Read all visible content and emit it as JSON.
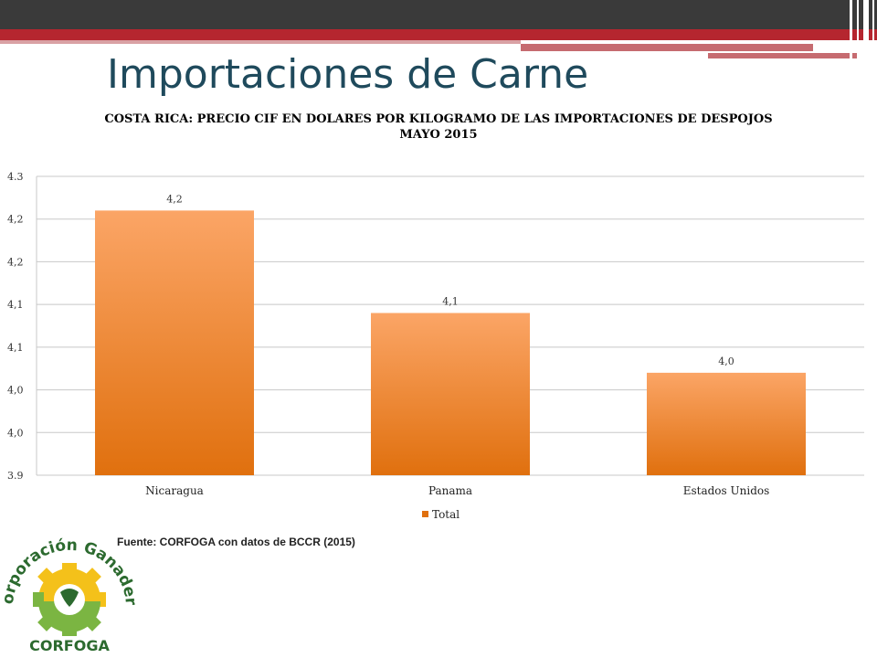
{
  "slide": {
    "title": "Importaciones de Carne",
    "source": "Fuente: CORFOGA con datos de BCCR (2015)"
  },
  "logo": {
    "name": "Corporación Ganadera",
    "short": "CORFOGA"
  },
  "colors": {
    "bar_top": "#fba566",
    "bar_bottom": "#e0700e",
    "title": "#1f4a5c",
    "top_bar": "#3a3a3a",
    "accent": "#b5262f"
  },
  "chart_data": {
    "type": "bar",
    "title": "COSTA RICA: PRECIO CIF EN DOLARES POR KILOGRAMO DE LAS IMPORTACIONES DE DESPOJOS",
    "subtitle": "MAYO 2015",
    "categories": [
      "Nicaragua",
      "Panama",
      "Estados Unidos"
    ],
    "series": [
      {
        "name": "Total",
        "values": [
          4.21,
          4.09,
          4.02
        ],
        "labels": [
          "4,2",
          "4,1",
          "4,0"
        ]
      }
    ],
    "ylim": [
      3.9,
      4.25
    ],
    "yticks": [
      {
        "value": 3.9,
        "label": "3.9"
      },
      {
        "value": 3.95,
        "label": "4,0"
      },
      {
        "value": 4.0,
        "label": "4,0"
      },
      {
        "value": 4.05,
        "label": "4,1"
      },
      {
        "value": 4.1,
        "label": "4,1"
      },
      {
        "value": 4.15,
        "label": "4,2"
      },
      {
        "value": 4.2,
        "label": "4,2"
      },
      {
        "value": 4.25,
        "label": "4.3"
      }
    ],
    "grid": true,
    "legend": "bottom",
    "xlabel": "",
    "ylabel": ""
  }
}
